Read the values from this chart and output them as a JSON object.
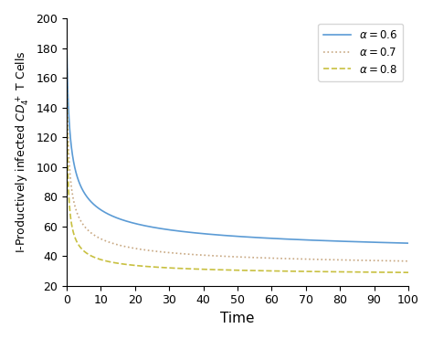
{
  "title": "",
  "xlabel": "Time",
  "ylabel": "I-Productively infected $CD_4^+$ T Cells",
  "xlim": [
    0,
    100
  ],
  "ylim": [
    20,
    200
  ],
  "yticks": [
    20,
    40,
    60,
    80,
    100,
    120,
    140,
    160,
    180,
    200
  ],
  "xticks": [
    0,
    10,
    20,
    30,
    40,
    50,
    60,
    70,
    80,
    90,
    100
  ],
  "curves": [
    {
      "alpha_val": 0.6,
      "label": "$\\alpha = 0.6$",
      "color": "#5B9BD5",
      "linestyle": "solid",
      "linewidth": 1.2,
      "y0": 188,
      "y_end": 36,
      "decay": 2.5,
      "power": 0.45
    },
    {
      "alpha_val": 0.7,
      "label": "$\\alpha = 0.7$",
      "color": "#C8A882",
      "linestyle": "dotted",
      "linewidth": 1.2,
      "y0": 188,
      "y_end": 30,
      "decay": 4.5,
      "power": 0.52
    },
    {
      "alpha_val": 0.8,
      "label": "$\\alpha = 0.8$",
      "color": "#C8C040",
      "linestyle": "dashed",
      "linewidth": 1.2,
      "y0": 188,
      "y_end": 26,
      "decay": 8.0,
      "power": 0.6
    }
  ],
  "legend_loc": "upper right",
  "background_color": "#ffffff",
  "grid": false
}
